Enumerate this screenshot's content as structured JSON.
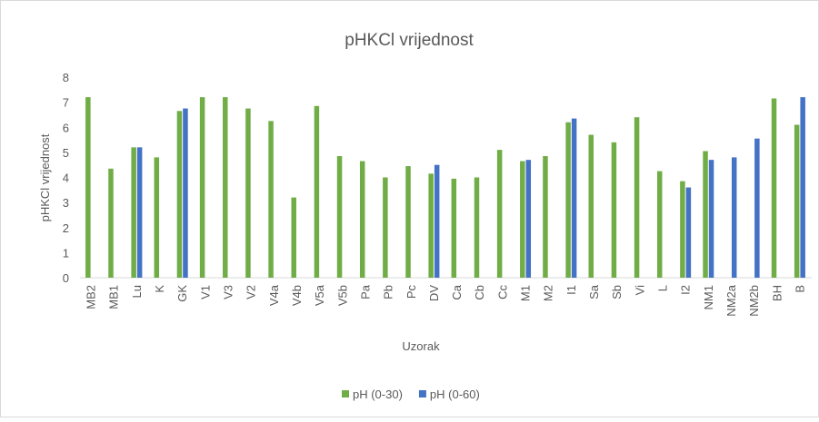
{
  "chart_data": {
    "type": "bar",
    "title": "pHKCl vrijednost",
    "x_label": "Uzorak",
    "y_label": "pHKCl vrijednost",
    "categories": [
      "MB2",
      "MB1",
      "Lu",
      "K",
      "GK",
      "V1",
      "V3",
      "V2",
      "V4a",
      "V4b",
      "V5a",
      "V5b",
      "Pa",
      "Pb",
      "Pc",
      "DV",
      "Ca",
      "Cb",
      "Cc",
      "M1",
      "M2",
      "I1",
      "Sa",
      "Sb",
      "Vi",
      "L",
      "I2",
      "NM1",
      "NM2a",
      "NM2b",
      "BH",
      "B"
    ],
    "series": [
      {
        "name": "pH (0-30)",
        "color": "#70ad47",
        "values": [
          7.2,
          4.35,
          5.2,
          4.8,
          6.65,
          7.2,
          7.2,
          6.75,
          6.25,
          3.2,
          6.85,
          4.85,
          4.65,
          4.0,
          4.45,
          4.15,
          3.95,
          4.0,
          5.1,
          4.65,
          4.85,
          6.2,
          5.7,
          5.4,
          6.4,
          4.25,
          3.85,
          5.05,
          null,
          null,
          7.15,
          6.1
        ]
      },
      {
        "name": "pH (0-60)",
        "color": "#4472c4",
        "values": [
          null,
          null,
          5.2,
          null,
          6.75,
          null,
          null,
          null,
          null,
          null,
          null,
          null,
          null,
          null,
          null,
          4.5,
          null,
          null,
          null,
          4.7,
          null,
          6.35,
          null,
          null,
          null,
          null,
          3.6,
          4.7,
          4.8,
          5.55,
          null,
          7.2
        ]
      }
    ],
    "ylim": [
      0,
      8
    ],
    "yticks": [
      0,
      1,
      2,
      3,
      4,
      5,
      6,
      7,
      8
    ],
    "grid": false,
    "legend": "bottom"
  }
}
